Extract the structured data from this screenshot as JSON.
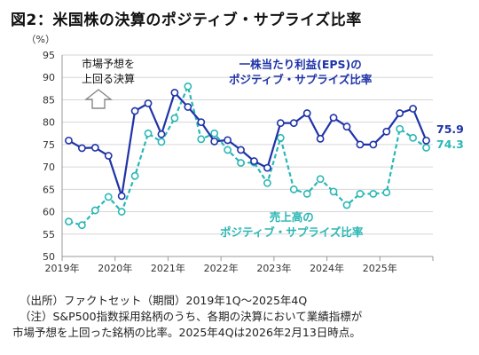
{
  "title": "図2：米国株の決算のポジティブ・サプライズ比率",
  "chart_data": {
    "type": "line",
    "yunit": "（%）",
    "ylim": [
      50,
      95
    ],
    "yticks": [
      50,
      55,
      60,
      65,
      70,
      75,
      80,
      85,
      90,
      95
    ],
    "xtick_labels": [
      "2019年",
      "2020年",
      "2021年",
      "2022年",
      "2023年",
      "2024年",
      "2025年"
    ],
    "x": [
      "2019Q1",
      "2019Q2",
      "2019Q3",
      "2019Q4",
      "2020Q1",
      "2020Q2",
      "2020Q3",
      "2020Q4",
      "2021Q1",
      "2021Q2",
      "2021Q3",
      "2021Q4",
      "2022Q1",
      "2022Q2",
      "2022Q3",
      "2022Q4",
      "2023Q1",
      "2023Q2",
      "2023Q3",
      "2023Q4",
      "2024Q1",
      "2024Q2",
      "2024Q3",
      "2024Q4",
      "2025Q1",
      "2025Q2",
      "2025Q3",
      "2025Q4"
    ],
    "series": [
      {
        "name": "一株当たり利益(EPS)の\nポジティブ・サプライズ比率",
        "color": "#1f33a8",
        "values": [
          75.9,
          74.2,
          74.3,
          72.5,
          63.5,
          82.5,
          84.2,
          77.3,
          86.6,
          83.4,
          80.0,
          75.7,
          76.0,
          73.8,
          71.3,
          69.8,
          79.8,
          79.8,
          82.0,
          76.3,
          81.0,
          79.0,
          75.0,
          75.0,
          77.9,
          82.0,
          83.0,
          75.9
        ]
      },
      {
        "name": "売上高の\nポジティブ・サプライズ比率",
        "color": "#2bb7b5",
        "values": [
          57.8,
          57.0,
          60.3,
          63.3,
          60.0,
          68.0,
          77.5,
          75.6,
          80.9,
          88.0,
          76.2,
          77.5,
          73.8,
          70.9,
          71.0,
          66.4,
          76.5,
          65.0,
          64.0,
          67.3,
          64.5,
          61.5,
          64.0,
          64.0,
          64.3,
          78.5,
          76.5,
          74.3
        ]
      }
    ],
    "end_labels": [
      "75.9",
      "74.3"
    ],
    "annotation_market": "市場予想を\n上回る決算",
    "grid": true,
    "legend": "inline labels"
  },
  "notes": {
    "source": "（出所）ファクトセット（期間）2019年1Q～2025年4Q",
    "note1": "（注）S&P500指数採用銘柄のうち、各期の決算において業績指標が",
    "note2": "市場予想を上回った銘柄の比率。2025年4Qは2026年2月13日時点。"
  }
}
